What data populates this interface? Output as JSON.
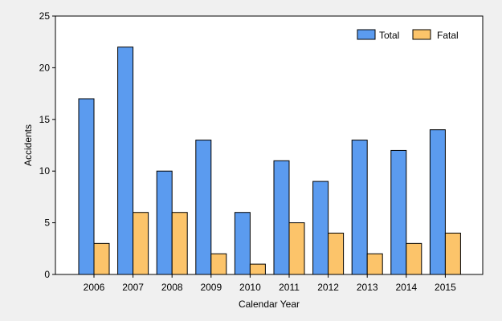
{
  "chart_data": {
    "type": "bar",
    "title": "",
    "xlabel": "Calendar Year",
    "ylabel": "Accidents",
    "ylim": [
      0,
      25
    ],
    "yticks": [
      0,
      5,
      10,
      15,
      20,
      25
    ],
    "grid": false,
    "legend_position": "top-right",
    "categories": [
      "2006",
      "2007",
      "2008",
      "2009",
      "2010",
      "2011",
      "2012",
      "2013",
      "2014",
      "2015"
    ],
    "series": [
      {
        "name": "Total",
        "color": "#5b9bef",
        "values": [
          17,
          22,
          10,
          13,
          6,
          11,
          9,
          13,
          12,
          14
        ]
      },
      {
        "name": "Fatal",
        "color": "#fcc46a",
        "values": [
          3,
          6,
          6,
          2,
          1,
          5,
          4,
          2,
          3,
          4
        ]
      }
    ]
  }
}
